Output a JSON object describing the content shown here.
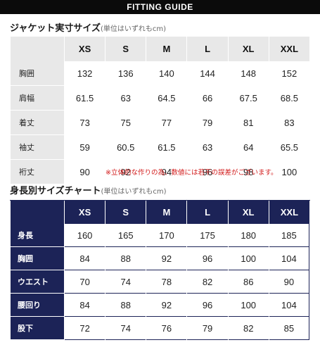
{
  "banner": {
    "title": "FITTING GUIDE"
  },
  "jacket": {
    "title": "ジャケット実寸サイズ",
    "unit": "(単位はいずれもcm)",
    "sizes": [
      "XS",
      "S",
      "M",
      "L",
      "XL",
      "XXL"
    ],
    "rows": [
      {
        "label": "胸囲",
        "values": [
          "132",
          "136",
          "140",
          "144",
          "148",
          "152"
        ]
      },
      {
        "label": "肩幅",
        "values": [
          "61.5",
          "63",
          "64.5",
          "66",
          "67.5",
          "68.5"
        ]
      },
      {
        "label": "着丈",
        "values": [
          "73",
          "75",
          "77",
          "79",
          "81",
          "83"
        ]
      },
      {
        "label": "袖丈",
        "values": [
          "59",
          "60.5",
          "61.5",
          "63",
          "64",
          "65.5"
        ]
      },
      {
        "label": "裄丈",
        "values": [
          "90",
          "92",
          "94",
          "96",
          "98",
          "100"
        ]
      }
    ],
    "note": "※立体的な作りの為、数値には若干の誤差がございます。"
  },
  "body_chart": {
    "title": "身長別サイズチャート",
    "unit": "(単位はいずれもcm)",
    "sizes": [
      "XS",
      "S",
      "M",
      "L",
      "XL",
      "XXL"
    ],
    "rows": [
      {
        "label": "身長",
        "values": [
          "160",
          "165",
          "170",
          "175",
          "180",
          "185"
        ]
      },
      {
        "label": "胸囲",
        "values": [
          "84",
          "88",
          "92",
          "96",
          "100",
          "104"
        ]
      },
      {
        "label": "ウエスト",
        "values": [
          "70",
          "74",
          "78",
          "82",
          "86",
          "90"
        ]
      },
      {
        "label": "腰回り",
        "values": [
          "84",
          "88",
          "92",
          "96",
          "100",
          "104"
        ]
      },
      {
        "label": "股下",
        "values": [
          "72",
          "74",
          "76",
          "79",
          "82",
          "85"
        ]
      }
    ]
  },
  "colors": {
    "navy": "#1c2357",
    "gray_header": "#e8e8e8",
    "note_red": "#d21a1a"
  }
}
